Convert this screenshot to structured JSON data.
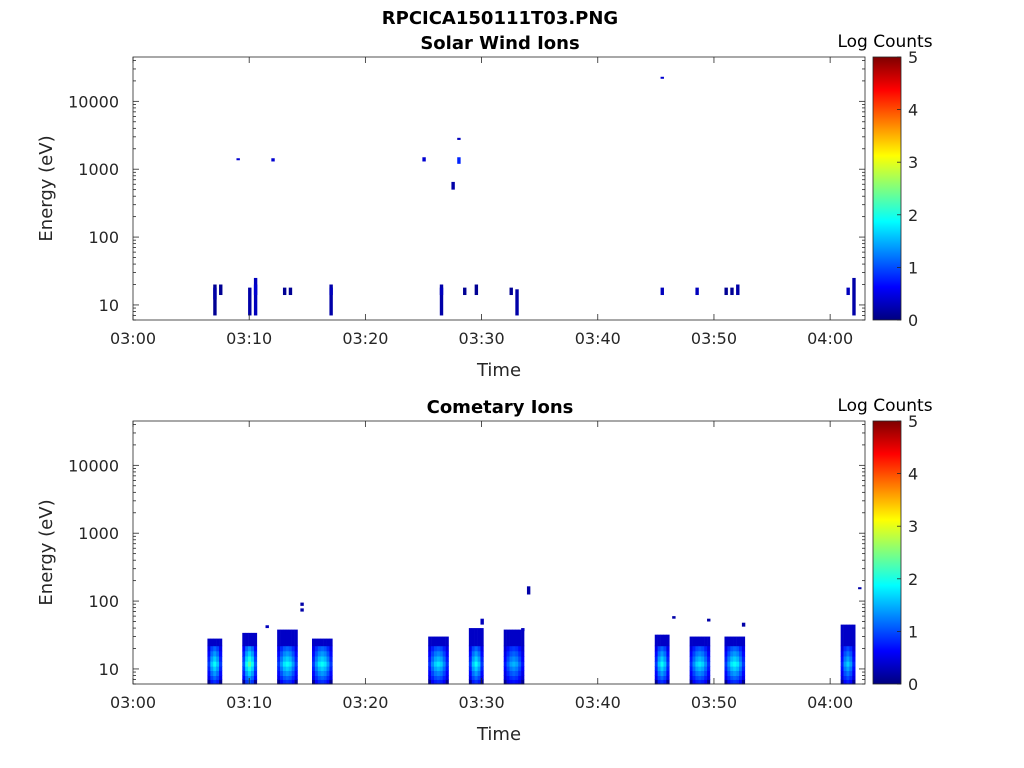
{
  "figure_title": "RPCICA150111T03.PNG",
  "chart_data": [
    {
      "type": "heatmap",
      "title": "Solar Wind Ions",
      "xlabel": "Time",
      "ylabel": "Energy (eV)",
      "x_unit": "HH:MM",
      "xlim": [
        "03:00",
        "04:03"
      ],
      "xticks": [
        "03:00",
        "03:10",
        "03:20",
        "03:30",
        "03:40",
        "03:50",
        "04:00"
      ],
      "yscale": "log",
      "ylim": [
        6,
        45000
      ],
      "yticks": [
        10,
        100,
        1000,
        10000
      ],
      "ytick_labels": [
        "10",
        "100",
        "1000",
        "10000"
      ],
      "colorbar": {
        "label": "Log Counts",
        "min": 0,
        "max": 5,
        "ticks": [
          "0",
          "1",
          "2",
          "3",
          "4",
          "5"
        ],
        "colormap": "jet"
      },
      "cells": [
        [
          "03:07",
          7,
          20,
          0.1
        ],
        [
          "03:07",
          12,
          18,
          0.2
        ],
        [
          "03:07.5",
          14,
          20,
          0.1
        ],
        [
          "03:10",
          7,
          18,
          0.2
        ],
        [
          "03:10.5",
          7,
          25,
          0.3
        ],
        [
          "03:10.5",
          14,
          20,
          0.4
        ],
        [
          "03:13",
          14,
          18,
          0.1
        ],
        [
          "03:13.5",
          14,
          18,
          0.1
        ],
        [
          "03:17",
          7,
          20,
          0.2
        ],
        [
          "03:17",
          14,
          18,
          0.3
        ],
        [
          "03:26.5",
          7,
          20,
          0.2
        ],
        [
          "03:26.5",
          14,
          18,
          0.3
        ],
        [
          "03:28.5",
          14,
          18,
          0.1
        ],
        [
          "03:29.5",
          14,
          20,
          0.1
        ],
        [
          "03:32.5",
          14,
          18,
          0.1
        ],
        [
          "03:33",
          7,
          17,
          0.2
        ],
        [
          "03:45.5",
          14,
          18,
          0.3
        ],
        [
          "03:48.5",
          14,
          18,
          0.3
        ],
        [
          "03:51",
          14,
          18,
          0.1
        ],
        [
          "03:51.5",
          14,
          18,
          0.1
        ],
        [
          "03:52",
          14,
          20,
          0.2
        ],
        [
          "04:01.5",
          14,
          18,
          0.3
        ],
        [
          "04:02",
          7,
          25,
          0.2
        ],
        [
          "03:09",
          1400,
          1450,
          0.4
        ],
        [
          "03:12",
          1300,
          1450,
          0.4
        ],
        [
          "03:25",
          1300,
          1500,
          0.4
        ],
        [
          "03:27.5",
          500,
          650,
          0.2
        ],
        [
          "03:28",
          1200,
          1500,
          0.8
        ],
        [
          "03:28",
          2700,
          2900,
          0.3
        ],
        [
          "03:45.5",
          22000,
          23000,
          0.4
        ]
      ]
    },
    {
      "type": "heatmap",
      "title": "Cometary Ions",
      "xlabel": "Time",
      "ylabel": "Energy (eV)",
      "x_unit": "HH:MM",
      "xlim": [
        "03:00",
        "04:03"
      ],
      "xticks": [
        "03:00",
        "03:10",
        "03:20",
        "03:30",
        "03:40",
        "03:50",
        "04:00"
      ],
      "yscale": "log",
      "ylim": [
        6,
        45000
      ],
      "yticks": [
        10,
        100,
        1000,
        10000
      ],
      "ytick_labels": [
        "10",
        "100",
        "1000",
        "10000"
      ],
      "colorbar": {
        "label": "Log Counts",
        "min": 0,
        "max": 5,
        "ticks": [
          "0",
          "1",
          "2",
          "3",
          "4",
          "5"
        ],
        "colormap": "jet"
      },
      "bursts": [
        {
          "t0": "03:06.5",
          "t1": "03:07.5",
          "ehigh": 28,
          "peak": 1.5
        },
        {
          "t0": "03:09.5",
          "t1": "03:10.5",
          "ehigh": 34,
          "peak": 1.8
        },
        {
          "t0": "03:12.5",
          "t1": "03:14",
          "ehigh": 38,
          "peak": 1.5
        },
        {
          "t0": "03:15.5",
          "t1": "03:17",
          "ehigh": 28,
          "peak": 1.5
        },
        {
          "t0": "03:25.5",
          "t1": "03:27",
          "ehigh": 30,
          "peak": 1.4
        },
        {
          "t0": "03:29",
          "t1": "03:30",
          "ehigh": 40,
          "peak": 1.5
        },
        {
          "t0": "03:32",
          "t1": "03:33.5",
          "ehigh": 38,
          "peak": 1.2
        },
        {
          "t0": "03:45",
          "t1": "03:46",
          "ehigh": 32,
          "peak": 1.5
        },
        {
          "t0": "03:48",
          "t1": "03:49.5",
          "ehigh": 30,
          "peak": 1.4
        },
        {
          "t0": "03:51",
          "t1": "03:52.5",
          "ehigh": 30,
          "peak": 1.5
        },
        {
          "t0": "04:01",
          "t1": "04:02",
          "ehigh": 45,
          "peak": 1.3
        }
      ],
      "cells": [
        [
          "03:11.5",
          40,
          44,
          0.3
        ],
        [
          "03:14.5",
          85,
          95,
          0.2
        ],
        [
          "03:14.5",
          70,
          78,
          0.2
        ],
        [
          "03:30",
          45,
          55,
          0.3
        ],
        [
          "03:33.5",
          36,
          40,
          0.3
        ],
        [
          "03:34",
          125,
          165,
          0.2
        ],
        [
          "03:46.5",
          55,
          60,
          0.2
        ],
        [
          "03:49.5",
          50,
          55,
          0.2
        ],
        [
          "03:52.5",
          42,
          48,
          0.2
        ],
        [
          "04:02.5",
          150,
          160,
          0.2
        ]
      ]
    }
  ]
}
